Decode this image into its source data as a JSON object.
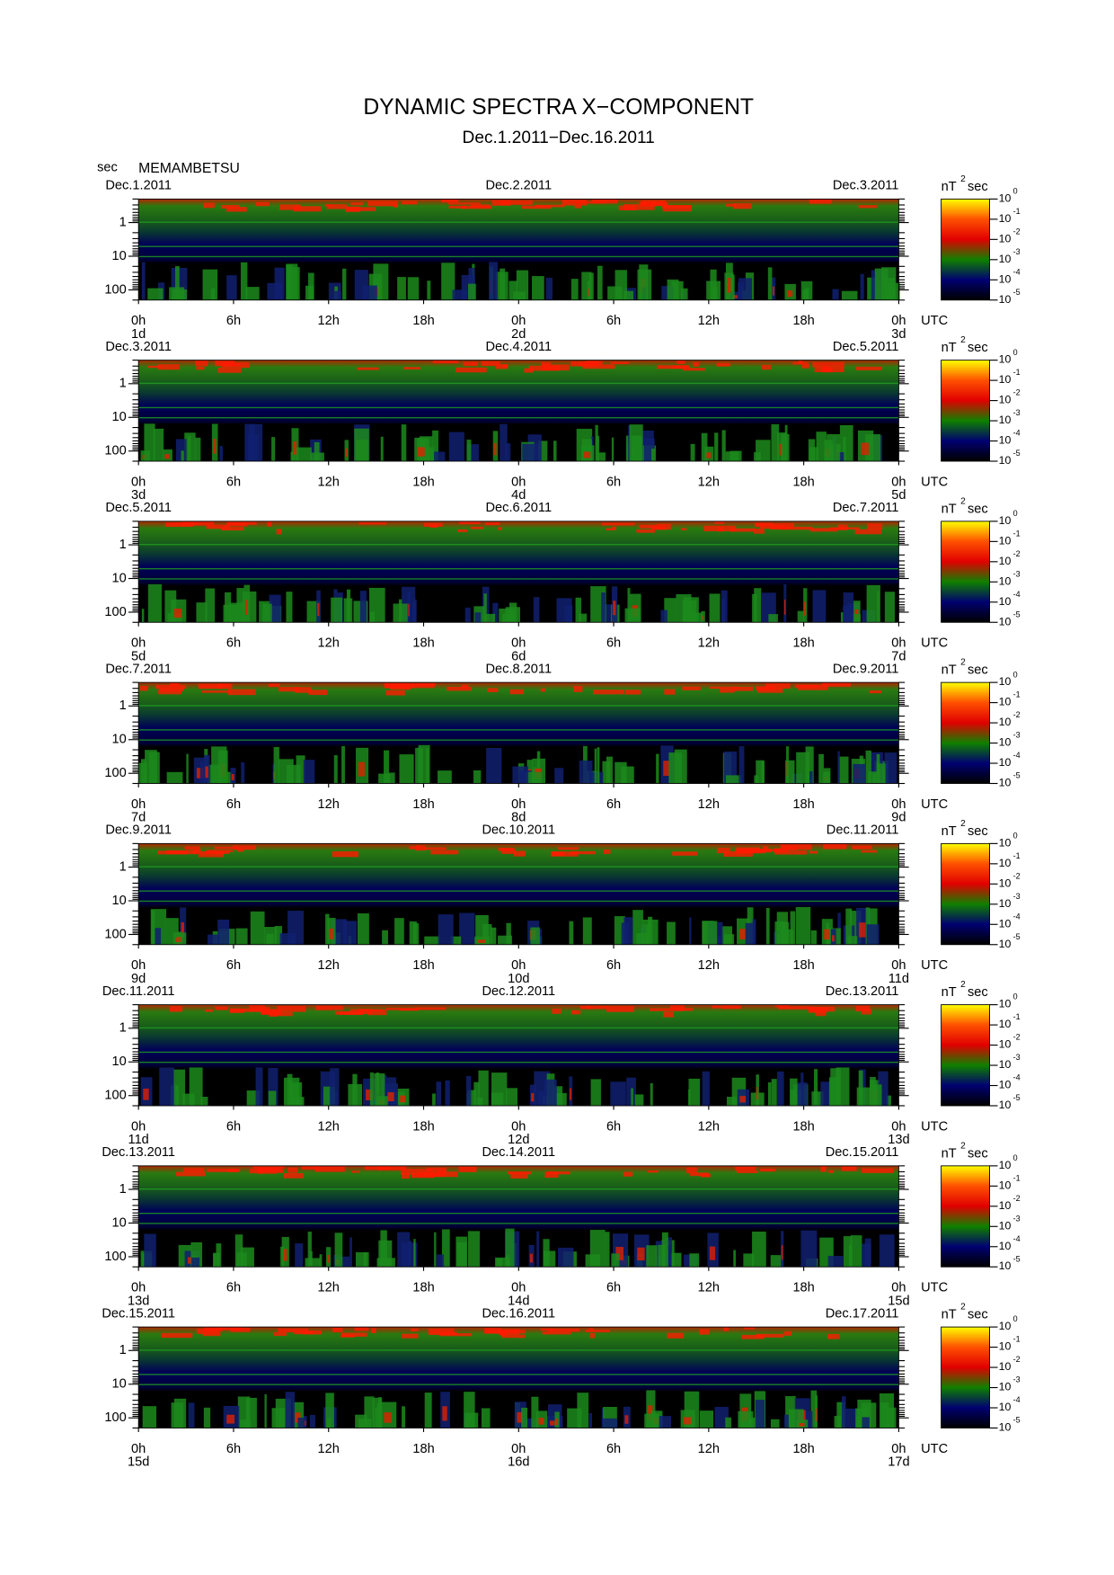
{
  "chart_data": {
    "type": "spectrogram",
    "title": "DYNAMIC SPECTRA X−COMPONENT",
    "subtitle": "Dec.1.2011−Dec.16.2011",
    "y_label": "sec",
    "station": "MEMAMBETSU",
    "x_unit": "UTC",
    "xlim": [
      0,
      48
    ],
    "xticks": [
      {
        "value": 0,
        "label": "0h"
      },
      {
        "value": 6,
        "label": "6h"
      },
      {
        "value": 12,
        "label": "12h"
      },
      {
        "value": 18,
        "label": "18h"
      },
      {
        "value": 24,
        "label": "0h"
      },
      {
        "value": 30,
        "label": "6h"
      },
      {
        "value": 36,
        "label": "12h"
      },
      {
        "value": 42,
        "label": "18h"
      },
      {
        "value": 48,
        "label": "0h"
      }
    ],
    "ylim": [
      0.2,
      200
    ],
    "log_y": true,
    "y_inverted": true,
    "yticks": [
      1,
      10,
      100
    ],
    "yminorticks": [
      0.2,
      0.3,
      0.4,
      0.5,
      0.6,
      0.7,
      0.8,
      0.9,
      2,
      3,
      4,
      5,
      6,
      7,
      8,
      9,
      20,
      30,
      40,
      50,
      60,
      70,
      80,
      90,
      200
    ],
    "colorbar_unit": "nT",
    "colorbar_unit_power": 2,
    "colorbar_unit_suffix": "sec",
    "colorbar_base": "10",
    "colorbar_exponents": [
      0,
      -1,
      -2,
      -3,
      -4,
      -5
    ],
    "colormap": [
      "#ffff00",
      "#ff5000",
      "#e00000",
      "#108000",
      "#000070",
      "#000000"
    ],
    "panels": [
      {
        "dates": [
          "Dec.1.2011",
          "Dec.2.2011",
          "Dec.3.2011"
        ],
        "days": [
          "1d",
          "2d",
          "3d"
        ]
      },
      {
        "dates": [
          "Dec.3.2011",
          "Dec.4.2011",
          "Dec.5.2011"
        ],
        "days": [
          "3d",
          "4d",
          "5d"
        ]
      },
      {
        "dates": [
          "Dec.5.2011",
          "Dec.6.2011",
          "Dec.7.2011"
        ],
        "days": [
          "5d",
          "6d",
          "7d"
        ]
      },
      {
        "dates": [
          "Dec.7.2011",
          "Dec.8.2011",
          "Dec.9.2011"
        ],
        "days": [
          "7d",
          "8d",
          "9d"
        ]
      },
      {
        "dates": [
          "Dec.9.2011",
          "Dec.10.2011",
          "Dec.11.2011"
        ],
        "days": [
          "9d",
          "10d",
          "11d"
        ]
      },
      {
        "dates": [
          "Dec.11.2011",
          "Dec.12.2011",
          "Dec.13.2011"
        ],
        "days": [
          "11d",
          "12d",
          "13d"
        ]
      },
      {
        "dates": [
          "Dec.13.2011",
          "Dec.14.2011",
          "Dec.15.2011"
        ],
        "days": [
          "13d",
          "14d",
          "15d"
        ]
      },
      {
        "dates": [
          "Dec.15.2011",
          "Dec.16.2011",
          "Dec.17.2011"
        ],
        "days": [
          "15d",
          "16d",
          "17d"
        ]
      }
    ]
  }
}
